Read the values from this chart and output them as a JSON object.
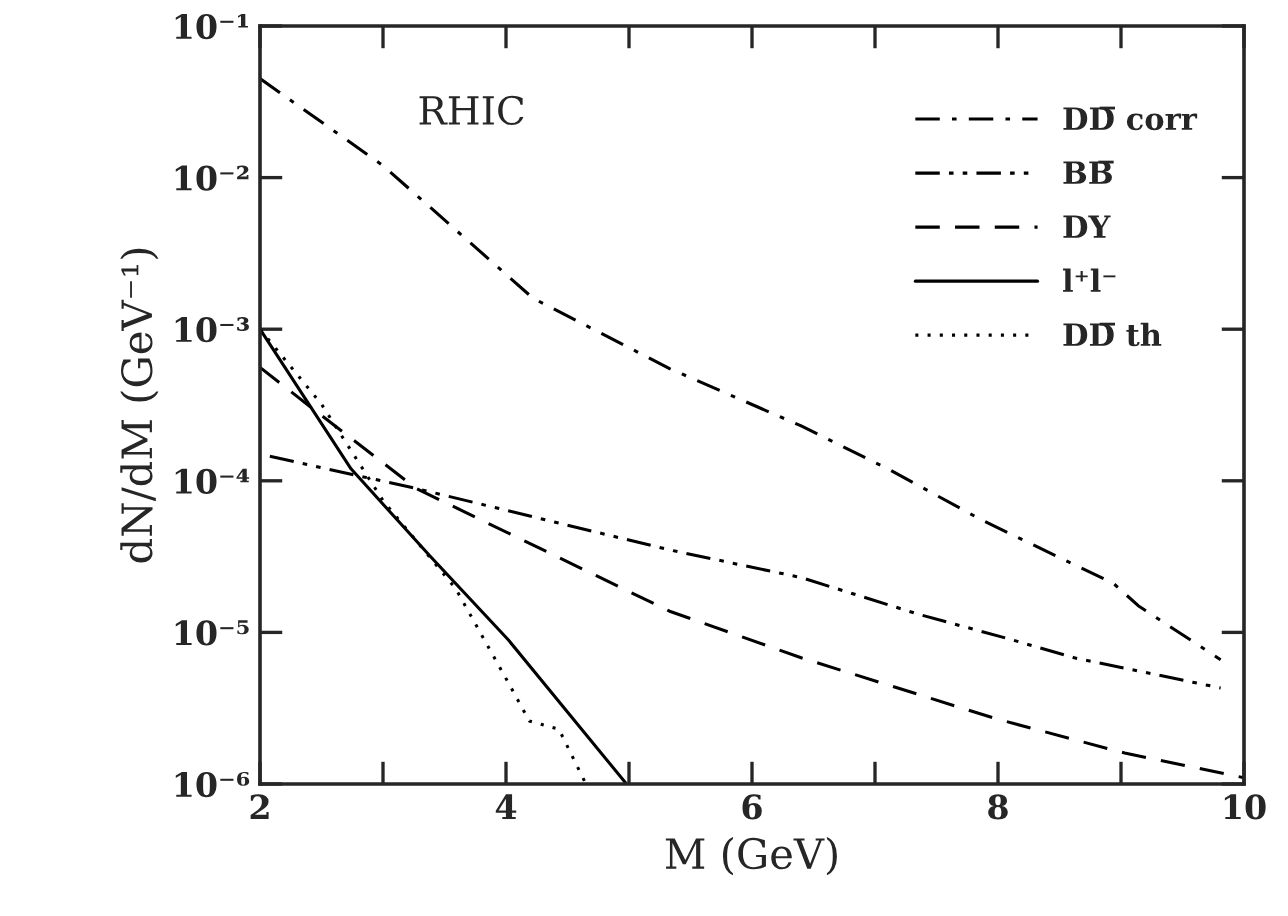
{
  "chart_data": {
    "type": "line",
    "xlabel": "M (GeV)",
    "ylabel": "dN/dM (GeV⁻¹)",
    "log": "y",
    "grid": false,
    "legend": "top right",
    "annotations": [
      "RHIC"
    ],
    "xlim": [
      2,
      10
    ],
    "xticks": [
      2,
      {
        "value": 3,
        "label": null
      },
      4,
      {
        "value": 5,
        "label": null
      },
      6,
      {
        "value": 7,
        "label": null
      },
      8,
      {
        "value": 9,
        "label": null
      },
      10
    ],
    "ylim": [
      1e-06,
      0.1
    ],
    "yticks": [
      {
        "value": 1e-06,
        "label": "10⁻⁶"
      },
      {
        "value": 1e-05,
        "label": "10⁻⁵"
      },
      {
        "value": 0.0001,
        "label": "10⁻⁴"
      },
      {
        "value": 0.001,
        "label": "10⁻³"
      },
      {
        "value": 0.01,
        "label": "10⁻²"
      },
      {
        "value": 0.1,
        "label": "10⁻¹"
      }
    ],
    "series": [
      {
        "name": "DD̅ corr",
        "color": "#000000",
        "line_style": "dashdot",
        "x": [
          2,
          3,
          4.22,
          5.33,
          6.4,
          7.13,
          7.87,
          8.94,
          9.14,
          9.81
        ],
        "values": [
          0.045,
          0.012,
          0.0016,
          0.00055,
          0.00023,
          0.000117,
          5.5e-05,
          2.1e-05,
          1.5e-05,
          6.6e-06
        ]
      },
      {
        "name": "BB̅",
        "color": "#000000",
        "line_style": "dashdotdot",
        "x": [
          2.08,
          3.27,
          5.33,
          6.4,
          7.35,
          8.08,
          8.62,
          9.81
        ],
        "values": [
          0.000145,
          8.9e-05,
          3.5e-05,
          2.3e-05,
          1.32e-05,
          9.1e-06,
          6.8e-06,
          4.3e-06
        ]
      },
      {
        "name": "DY",
        "color": "#000000",
        "line_style": "dashed",
        "x": [
          2,
          2.45,
          3.27,
          5.33,
          6.4,
          7.98,
          9.03,
          10
        ],
        "values": [
          0.00056,
          0.00029,
          8.9e-05,
          1.38e-05,
          6.8e-06,
          2.7e-06,
          1.6e-06,
          1.1e-06
        ]
      },
      {
        "name": "l⁺l⁻",
        "color": "#000000",
        "line_style": "solid",
        "x": [
          2,
          2.74,
          3.38,
          4.02,
          4.98
        ],
        "values": [
          0.001,
          0.00012,
          3.2e-05,
          8.9e-06,
          1e-06
        ]
      },
      {
        "name": "DD̅ th",
        "color": "#000000",
        "line_style": "dotted",
        "x": [
          2,
          2.5,
          3,
          3.59,
          4.01,
          4.19,
          4.43,
          4.65
        ],
        "values": [
          0.001,
          0.00032,
          7.4e-05,
          1.95e-05,
          4.8e-06,
          2.6e-06,
          2.3e-06,
          1e-06
        ]
      }
    ]
  }
}
